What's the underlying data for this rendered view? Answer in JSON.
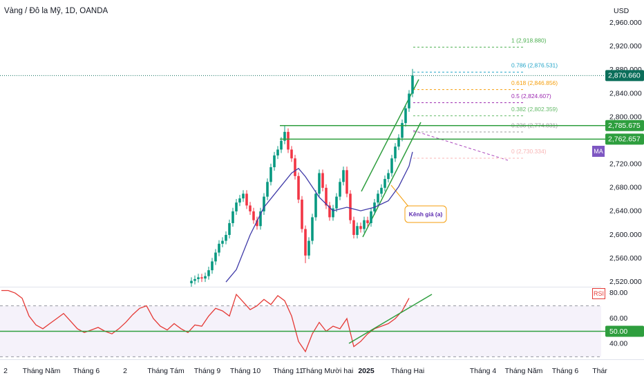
{
  "chart_data": {
    "type": "candlestick",
    "title": "Vàng / Đô la Mỹ, 1D, OANDA",
    "currency": "USD",
    "xlim": [
      -55.4,
      131
    ],
    "xticks": [
      {
        "value": -53.8,
        "label": "2"
      },
      {
        "value": -43.4,
        "label": "Tháng Năm"
      },
      {
        "value": -30.4,
        "label": "Tháng 6"
      },
      {
        "value": -19.2,
        "label": "2"
      },
      {
        "value": -7.4,
        "label": "Tháng Tám"
      },
      {
        "value": 4.6,
        "label": "Tháng 9"
      },
      {
        "value": 15.6,
        "label": "Tháng 10"
      },
      {
        "value": 28,
        "label": "Tháng 11"
      },
      {
        "value": 39.4,
        "label": "Tháng Mười hai"
      },
      {
        "value": 50.6,
        "label": "2025"
      },
      {
        "value": 62.6,
        "label": "Tháng Hai"
      },
      {
        "value": 84.4,
        "label": "Tháng 4"
      },
      {
        "value": 96.2,
        "label": "Tháng Năm"
      },
      {
        "value": 108.2,
        "label": "Tháng 6"
      },
      {
        "value": 118.2,
        "label": "Thár"
      }
    ],
    "ylim": [
      2512,
      2999
    ],
    "yticks": [
      {
        "value": 2520,
        "label": "2,520.000"
      },
      {
        "value": 2560,
        "label": "2,560.000"
      },
      {
        "value": 2600,
        "label": "2,600.000"
      },
      {
        "value": 2640,
        "label": "2,640.000"
      },
      {
        "value": 2680,
        "label": "2,680.000"
      },
      {
        "value": 2720,
        "label": "2,720.000"
      },
      {
        "value": 2760,
        "label": "2,760.000"
      },
      {
        "value": 2800,
        "label": "2,800.000"
      },
      {
        "value": 2840,
        "label": "2,840.000"
      },
      {
        "value": 2880,
        "label": "2,880.000"
      },
      {
        "value": 2920,
        "label": "2,920.000"
      },
      {
        "value": 2960,
        "label": "2,960.000"
      }
    ],
    "up_color": "#089981",
    "down_color": "#f23645",
    "candles": {
      "open": [
        2518,
        2522,
        2525,
        2528,
        2526,
        2530,
        2540,
        2555,
        2570,
        2585,
        2590,
        2600,
        2620,
        2640,
        2655,
        2662,
        2670,
        2650,
        2640,
        2625,
        2615,
        2640,
        2665,
        2690,
        2715,
        2735,
        2745,
        2760,
        2775,
        2745,
        2730,
        2700,
        2660,
        2610,
        2565,
        2590,
        2630,
        2670,
        2705,
        2680,
        2650,
        2630,
        2645,
        2665,
        2690,
        2710,
        2670,
        2625,
        2600,
        2615,
        2610,
        2625,
        2620,
        2640,
        2655,
        2670,
        2680,
        2695,
        2705,
        2730,
        2750,
        2765,
        2790,
        2815,
        2840
      ],
      "high": [
        2528,
        2531,
        2534,
        2534,
        2536,
        2546,
        2561,
        2576,
        2591,
        2596,
        2606,
        2626,
        2646,
        2661,
        2668,
        2676,
        2676,
        2656,
        2646,
        2631,
        2646,
        2671,
        2696,
        2721,
        2741,
        2751,
        2766,
        2785,
        2781,
        2751,
        2736,
        2706,
        2666,
        2616,
        2596,
        2636,
        2676,
        2711,
        2711,
        2686,
        2656,
        2651,
        2671,
        2696,
        2716,
        2716,
        2676,
        2631,
        2621,
        2621,
        2631,
        2631,
        2646,
        2661,
        2676,
        2686,
        2701,
        2711,
        2736,
        2756,
        2771,
        2796,
        2821,
        2846,
        2882
      ],
      "low": [
        2512,
        2516,
        2519,
        2520,
        2520,
        2524,
        2534,
        2549,
        2564,
        2579,
        2584,
        2594,
        2614,
        2634,
        2649,
        2656,
        2644,
        2634,
        2619,
        2609,
        2609,
        2634,
        2659,
        2684,
        2709,
        2729,
        2739,
        2754,
        2739,
        2724,
        2694,
        2654,
        2604,
        2552,
        2559,
        2584,
        2624,
        2664,
        2674,
        2644,
        2624,
        2624,
        2639,
        2659,
        2684,
        2664,
        2619,
        2594,
        2594,
        2604,
        2604,
        2614,
        2614,
        2634,
        2649,
        2664,
        2674,
        2689,
        2699,
        2724,
        2744,
        2759,
        2784,
        2809,
        2834
      ],
      "close": [
        2522,
        2525,
        2528,
        2526,
        2530,
        2540,
        2555,
        2570,
        2585,
        2590,
        2600,
        2620,
        2640,
        2655,
        2662,
        2670,
        2650,
        2640,
        2625,
        2615,
        2640,
        2665,
        2690,
        2715,
        2735,
        2745,
        2760,
        2775,
        2745,
        2730,
        2700,
        2660,
        2610,
        2565,
        2590,
        2630,
        2670,
        2705,
        2680,
        2650,
        2630,
        2645,
        2665,
        2690,
        2710,
        2670,
        2625,
        2600,
        2615,
        2610,
        2625,
        2620,
        2640,
        2655,
        2670,
        2680,
        2695,
        2705,
        2730,
        2750,
        2765,
        2790,
        2815,
        2840,
        2870.66
      ]
    },
    "ma": {
      "name": "MA",
      "color": "#3f3aa8",
      "x": [
        10,
        13,
        17,
        21,
        25,
        29,
        31,
        33,
        37,
        41,
        45,
        49,
        53,
        57,
        60,
        63,
        64
      ],
      "values": [
        2520,
        2541,
        2600,
        2647,
        2676,
        2705,
        2713,
        2699,
        2664,
        2641,
        2647,
        2641,
        2647,
        2658,
        2682,
        2717,
        2741
      ]
    },
    "fib": [
      {
        "label": "1 (2,918.880)",
        "value": 2918.88,
        "color": "#4caf50"
      },
      {
        "label": "0.786 (2,876.531)",
        "value": 2876.531,
        "color": "#26a6c9"
      },
      {
        "label": "0.618 (2,846.856)",
        "value": 2846.856,
        "color": "#f59e0b"
      },
      {
        "label": "0.5 (2,824.607)",
        "value": 2824.607,
        "color": "#9c27b0"
      },
      {
        "label": "0.382 (2,802.359)",
        "value": 2802.359,
        "color": "#66bb6a"
      },
      {
        "label": "0.236 (2,774.831)",
        "value": 2774.831,
        "color": "#9e9e9e"
      },
      {
        "label": "0 (2,730.334)",
        "value": 2730.334,
        "color": "#f8b4b4"
      }
    ],
    "price_lines": [
      {
        "value": 2785.675,
        "label": "2,785.675",
        "color": "#2e9e3e"
      },
      {
        "value": 2762.657,
        "label": "2,762.657",
        "color": "#2e9e3e"
      }
    ],
    "last_price": {
      "value": 2870.66,
      "label": "2,870.660",
      "color": "#0b6e5a"
    },
    "annotation": "Kênh giá (a)",
    "rsi": {
      "name": "RSI",
      "color": "#e53935",
      "ylim": [
        28,
        85
      ],
      "yticks": [
        {
          "value": 80,
          "label": "80.00"
        },
        {
          "value": 60,
          "label": "60.00"
        },
        {
          "value": 40,
          "label": "40.00"
        }
      ],
      "bands": [
        30,
        70
      ],
      "level": {
        "value": 50,
        "label": "50.00",
        "color": "#2e9e3e"
      },
      "x": [
        -55,
        -53,
        -51,
        -49,
        -47,
        -45,
        -43,
        -41,
        -39,
        -37,
        -35,
        -33,
        -31,
        -29,
        -27,
        -25,
        -23,
        -21,
        -19,
        -17,
        -15,
        -13,
        -11,
        -9,
        -7,
        -5,
        -3,
        -1,
        1,
        3,
        5,
        7,
        9,
        11,
        13,
        15,
        17,
        19,
        21,
        23,
        25,
        27,
        29,
        31,
        33,
        35,
        37,
        39,
        41,
        43,
        45,
        47,
        49,
        51,
        53,
        55,
        57,
        59,
        61,
        63
      ],
      "values": [
        82,
        82,
        80,
        76,
        62,
        55,
        52,
        56,
        60,
        64,
        58,
        52,
        49,
        51,
        53,
        50,
        48,
        52,
        57,
        63,
        68,
        70,
        60,
        54,
        51,
        56,
        52,
        49,
        55,
        54,
        62,
        68,
        66,
        62,
        79,
        73,
        67,
        70,
        75,
        71,
        78,
        74,
        62,
        42,
        34,
        48,
        57,
        50,
        54,
        52,
        60,
        38,
        42,
        48,
        52,
        54,
        56,
        60,
        66,
        76
      ]
    }
  }
}
